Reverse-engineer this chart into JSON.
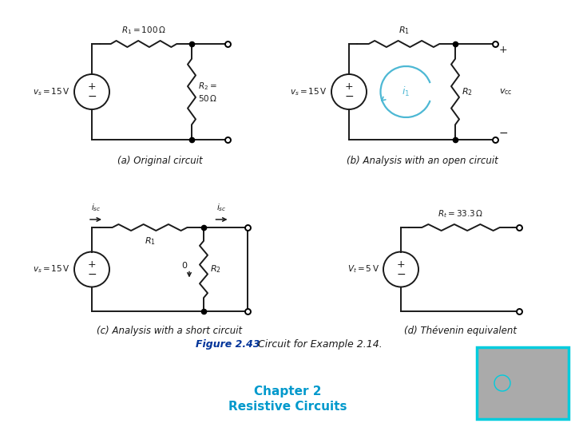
{
  "title_bold": "Figure 2.43",
  "title_normal": "  Circuit for Example 2.14.",
  "title_color_bold": "#003399",
  "title_color_normal": "#1a1a1a",
  "subtitle_line1": "Chapter 2",
  "subtitle_line2": "Resistive Circuits",
  "subtitle_color": "#0099cc",
  "background_color": "#ffffff",
  "fig_width": 7.2,
  "fig_height": 5.4,
  "captions": {
    "a": "(a) Original circuit",
    "b": "(b) Analysis with an open circuit",
    "c": "(c) Analysis with a short circuit",
    "d": "(d) Thévenin equivalent"
  },
  "thumbnail_color": "#00ccdd",
  "thumbnail_bg": "#aaaaaa",
  "black": "#1a1a1a",
  "cyan": "#4db8d4"
}
